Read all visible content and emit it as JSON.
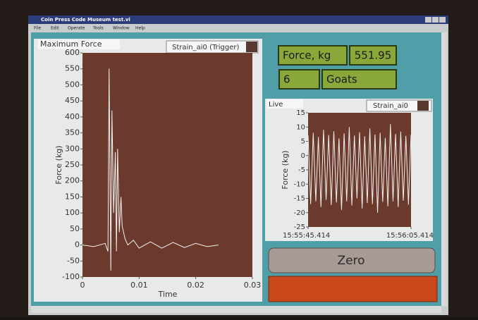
{
  "window": {
    "title": "Coin Press Code Museum test.vi",
    "menu": [
      "File",
      "Edit",
      "Operate",
      "Tools",
      "Window",
      "Help"
    ]
  },
  "indicators": {
    "force_label": "Force, kg",
    "force_value": "551.95",
    "count": "6",
    "unit": "Goats"
  },
  "buttons": {
    "zero": "Zero"
  },
  "chart_data": [
    {
      "type": "line",
      "title": "Maximum Force",
      "x_label": "Time",
      "y_label": "Force (kg)",
      "series": [
        {
          "name": "Strain_ai0 (Trigger)",
          "color": "#f2f2f2",
          "x": [
            0,
            0.002,
            0.004,
            0.0045,
            0.0047,
            0.005,
            0.0052,
            0.0055,
            0.0058,
            0.006,
            0.0062,
            0.0065,
            0.0068,
            0.007,
            0.0075,
            0.008,
            0.009,
            0.01,
            0.012,
            0.014,
            0.016,
            0.018,
            0.02,
            0.022,
            0.024
          ],
          "values": [
            0,
            -5,
            5,
            -20,
            551,
            -80,
            420,
            100,
            290,
            -20,
            300,
            40,
            150,
            60,
            20,
            0,
            15,
            -10,
            10,
            -10,
            8,
            -8,
            5,
            -5,
            0
          ]
        }
      ],
      "xlim": [
        0,
        0.03
      ],
      "xticks": [
        0,
        0.01,
        0.02,
        0.03
      ],
      "ylim": [
        -100,
        600
      ],
      "yticks": [
        -100,
        -50,
        0,
        50,
        100,
        150,
        200,
        250,
        300,
        350,
        400,
        450,
        500,
        550,
        600
      ]
    },
    {
      "type": "line",
      "title": "Live",
      "y_label": "Force (kg)",
      "series": [
        {
          "name": "Strain_ai0",
          "color": "#f2f2f2",
          "x": [
            0,
            0.5,
            1,
            1.5,
            2,
            2.5,
            3,
            3.5,
            4,
            4.5,
            5,
            5.5,
            6,
            6.5,
            7,
            7.5,
            8,
            8.5,
            9,
            9.5,
            10,
            10.5,
            11,
            11.5,
            12,
            12.5,
            13,
            13.5,
            14,
            14.5,
            15,
            15.5,
            16,
            16.5,
            17,
            17.5,
            18,
            18.5,
            19,
            19.5,
            20
          ],
          "values": [
            7,
            -17,
            8,
            -16,
            6.5,
            -18,
            9,
            -15.5,
            7.2,
            -17.3,
            8.5,
            -16.4,
            6,
            -19,
            7.8,
            -16,
            10,
            -17.5,
            7,
            -15,
            8.2,
            -18.5,
            6.8,
            -16.6,
            9.5,
            -17,
            7.4,
            -20,
            8,
            -16.2,
            6.2,
            -17.8,
            11,
            -16,
            7.6,
            -18,
            8.4,
            -15.8,
            6.9,
            -17.2,
            7.3
          ]
        }
      ],
      "xlim": [
        0,
        20
      ],
      "xticks": [
        {
          "value": 0,
          "label": "15:55:45.414"
        },
        {
          "value": 20,
          "label": "15:56:05.414"
        }
      ],
      "ylim": [
        -25,
        15
      ],
      "yticks": [
        -25,
        -20,
        -15,
        -10,
        -5,
        0,
        5,
        10,
        15
      ]
    }
  ]
}
